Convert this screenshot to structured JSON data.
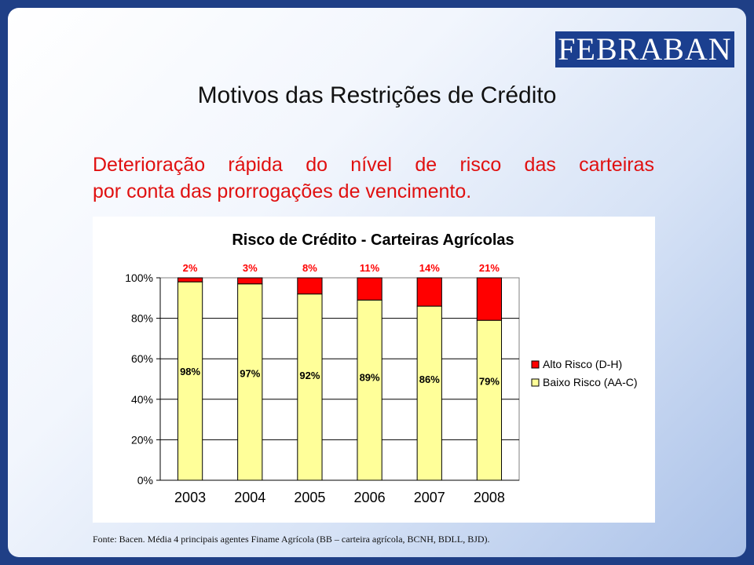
{
  "logo": {
    "text": "FEBRABAN"
  },
  "title": "Motivos das Restrições de Crédito",
  "subtitle_lines": [
    "Deterioração rápida do nível de risco das carteiras",
    "por conta das prorrogações de vencimento."
  ],
  "source": "Fonte: Bacen. Média 4 principais agentes Finame Agrícola (BB – carteira agrícola, BCNH, BDLL, BJD).",
  "colors": {
    "alto_risco": "#ff0000",
    "baixo_risco": "#ffff99",
    "logo_bg": "#1b3f8f",
    "subtitle": "#e01010"
  },
  "chart_data": {
    "type": "bar",
    "stacked": true,
    "title": "Risco de Crédito - Carteiras Agrícolas",
    "categories": [
      "2003",
      "2004",
      "2005",
      "2006",
      "2007",
      "2008"
    ],
    "series": [
      {
        "name": "Baixo Risco (AA-C)",
        "values": [
          98,
          97,
          92,
          89,
          86,
          79
        ],
        "labels": [
          "98%",
          "97%",
          "92%",
          "89%",
          "86%",
          "79%"
        ],
        "color": "#ffff99"
      },
      {
        "name": "Alto Risco (D-H)",
        "values": [
          2,
          3,
          8,
          11,
          14,
          21
        ],
        "labels": [
          "2%",
          "3%",
          "8%",
          "11%",
          "14%",
          "21%"
        ],
        "color": "#ff0000"
      }
    ],
    "yticks": [
      "0%",
      "20%",
      "40%",
      "60%",
      "80%",
      "100%"
    ],
    "ylim": [
      0,
      100
    ],
    "grid": true,
    "legend": "right",
    "legend_items": [
      "Alto Risco (D-H)",
      "Baixo Risco (AA-C)"
    ]
  }
}
